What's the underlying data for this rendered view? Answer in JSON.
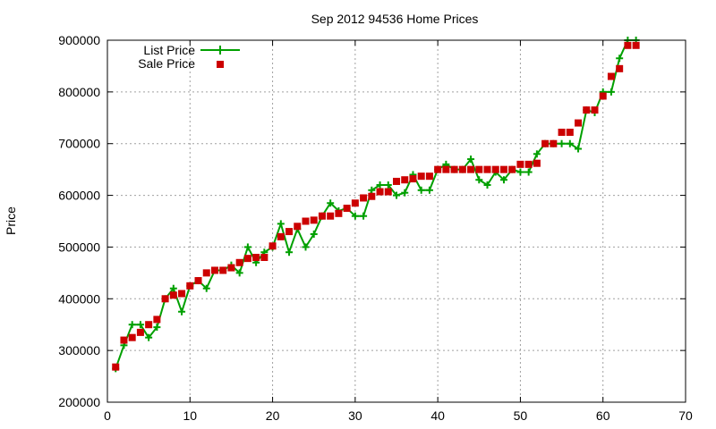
{
  "chart_data": {
    "type": "line",
    "title": "Sep 2012 94536 Home Prices",
    "xlabel": "",
    "ylabel": "Price",
    "xlim": [
      0,
      70
    ],
    "ylim": [
      200000,
      900000
    ],
    "x_ticks": [
      "0",
      "10",
      "20",
      "30",
      "40",
      "50",
      "60",
      "70"
    ],
    "y_ticks": [
      "200000",
      "300000",
      "400000",
      "500000",
      "600000",
      "700000",
      "800000",
      "900000"
    ],
    "grid": true,
    "legend_position": "top-left",
    "colors": {
      "list": "#00a000",
      "sale": "#cc0000"
    },
    "series": [
      {
        "name": "List Price",
        "style": "line+plus",
        "points": [
          [
            1,
            265000
          ],
          [
            2,
            310000
          ],
          [
            3,
            350000
          ],
          [
            4,
            350000
          ],
          [
            5,
            325000
          ],
          [
            6,
            345000
          ],
          [
            7,
            400000
          ],
          [
            8,
            420000
          ],
          [
            9,
            375000
          ],
          [
            10,
            425000
          ],
          [
            11,
            435000
          ],
          [
            12,
            420000
          ],
          [
            13,
            455000
          ],
          [
            14,
            455000
          ],
          [
            15,
            465000
          ],
          [
            16,
            450000
          ],
          [
            17,
            500000
          ],
          [
            18,
            470000
          ],
          [
            19,
            490000
          ],
          [
            20,
            500000
          ],
          [
            21,
            545000
          ],
          [
            22,
            490000
          ],
          [
            23,
            535000
          ],
          [
            24,
            500000
          ],
          [
            25,
            525000
          ],
          [
            26,
            560000
          ],
          [
            27,
            585000
          ],
          [
            28,
            570000
          ],
          [
            29,
            575000
          ],
          [
            30,
            560000
          ],
          [
            31,
            560000
          ],
          [
            32,
            610000
          ],
          [
            33,
            620000
          ],
          [
            34,
            620000
          ],
          [
            35,
            600000
          ],
          [
            36,
            605000
          ],
          [
            37,
            640000
          ],
          [
            38,
            610000
          ],
          [
            39,
            610000
          ],
          [
            40,
            650000
          ],
          [
            41,
            660000
          ],
          [
            42,
            650000
          ],
          [
            43,
            650000
          ],
          [
            44,
            670000
          ],
          [
            45,
            630000
          ],
          [
            46,
            620000
          ],
          [
            47,
            645000
          ],
          [
            48,
            630000
          ],
          [
            49,
            650000
          ],
          [
            50,
            645000
          ],
          [
            51,
            645000
          ],
          [
            52,
            680000
          ],
          [
            53,
            700000
          ],
          [
            54,
            700000
          ],
          [
            55,
            700000
          ],
          [
            56,
            700000
          ],
          [
            57,
            690000
          ],
          [
            58,
            765000
          ],
          [
            59,
            760000
          ],
          [
            60,
            800000
          ],
          [
            61,
            800000
          ],
          [
            62,
            865000
          ],
          [
            63,
            900000
          ],
          [
            64,
            900000
          ]
        ]
      },
      {
        "name": "Sale Price",
        "style": "square",
        "points": [
          [
            1,
            268000
          ],
          [
            2,
            320000
          ],
          [
            3,
            325000
          ],
          [
            4,
            335000
          ],
          [
            5,
            350000
          ],
          [
            6,
            360000
          ],
          [
            7,
            400000
          ],
          [
            8,
            407000
          ],
          [
            9,
            410000
          ],
          [
            10,
            425000
          ],
          [
            11,
            435000
          ],
          [
            12,
            450000
          ],
          [
            13,
            455000
          ],
          [
            14,
            455000
          ],
          [
            15,
            460000
          ],
          [
            16,
            470000
          ],
          [
            17,
            478000
          ],
          [
            18,
            480000
          ],
          [
            19,
            480000
          ],
          [
            20,
            502000
          ],
          [
            21,
            520000
          ],
          [
            22,
            530000
          ],
          [
            23,
            540000
          ],
          [
            24,
            550000
          ],
          [
            25,
            552000
          ],
          [
            26,
            560000
          ],
          [
            27,
            560000
          ],
          [
            28,
            565000
          ],
          [
            29,
            575000
          ],
          [
            30,
            585000
          ],
          [
            31,
            595000
          ],
          [
            32,
            598000
          ],
          [
            33,
            607000
          ],
          [
            34,
            607000
          ],
          [
            35,
            627000
          ],
          [
            36,
            630000
          ],
          [
            37,
            632000
          ],
          [
            38,
            637000
          ],
          [
            39,
            637000
          ],
          [
            40,
            650000
          ],
          [
            41,
            650000
          ],
          [
            42,
            650000
          ],
          [
            43,
            650000
          ],
          [
            44,
            650000
          ],
          [
            45,
            650000
          ],
          [
            46,
            650000
          ],
          [
            47,
            650000
          ],
          [
            48,
            650000
          ],
          [
            49,
            650000
          ],
          [
            50,
            660000
          ],
          [
            51,
            660000
          ],
          [
            52,
            662000
          ],
          [
            53,
            700000
          ],
          [
            54,
            700000
          ],
          [
            55,
            722000
          ],
          [
            56,
            722000
          ],
          [
            57,
            740000
          ],
          [
            58,
            765000
          ],
          [
            59,
            765000
          ],
          [
            60,
            792000
          ],
          [
            61,
            830000
          ],
          [
            62,
            845000
          ],
          [
            63,
            890000
          ],
          [
            64,
            890000
          ]
        ]
      }
    ]
  }
}
